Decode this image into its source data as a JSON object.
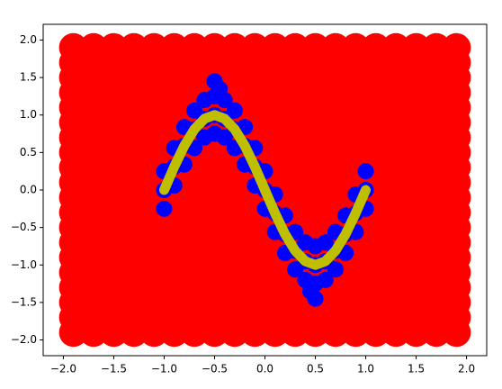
{
  "chart_data": {
    "type": "scatter",
    "xlim": [
      -2.2,
      2.2
    ],
    "ylim": [
      -2.21,
      2.21
    ],
    "xticks": [
      {
        "value": -2,
        "label": "−2.0"
      },
      {
        "value": -1.5,
        "label": "−1.5"
      },
      {
        "value": -1,
        "label": "−1.0"
      },
      {
        "value": -0.5,
        "label": "−0.5"
      },
      {
        "value": 0,
        "label": "0.0"
      },
      {
        "value": 0.5,
        "label": "0.5"
      },
      {
        "value": 1,
        "label": "1.0"
      },
      {
        "value": 1.5,
        "label": "1.5"
      },
      {
        "value": 2,
        "label": "2.0"
      }
    ],
    "yticks": [
      {
        "value": -2,
        "label": "−2.0"
      },
      {
        "value": -1.5,
        "label": "−1.5"
      },
      {
        "value": -1,
        "label": "−1.0"
      },
      {
        "value": -0.5,
        "label": "−0.5"
      },
      {
        "value": 0,
        "label": "0.0"
      },
      {
        "value": 0.5,
        "label": "0.5"
      },
      {
        "value": 1,
        "label": "1.0"
      },
      {
        "value": 1.5,
        "label": "1.5"
      },
      {
        "value": 2,
        "label": "2.0"
      }
    ],
    "series": [
      {
        "type": "scatter",
        "color": "#ff0000",
        "x": [
          -1.9,
          -1.7,
          -1.5,
          -1.3,
          -1.1,
          -0.9,
          -0.7,
          -0.5,
          -0.3,
          -0.1,
          0.1,
          0.3,
          0.5,
          0.7,
          0.9,
          1.1,
          1.3,
          1.5,
          1.7,
          1.9,
          -1.9,
          -1.7,
          -1.5,
          -1.3,
          -1.1,
          -0.9,
          -0.7,
          -0.5,
          -0.3,
          -0.1,
          0.1,
          0.3,
          0.5,
          0.7,
          0.9,
          1.1,
          1.3,
          1.5,
          1.7,
          1.9,
          -1.9,
          -1.7,
          -1.5,
          -1.3,
          -1.1,
          -0.9,
          -0.7,
          -0.5,
          -0.3,
          -0.1,
          0.1,
          0.3,
          0.5,
          0.7,
          0.9,
          1.1,
          1.3,
          1.5,
          1.7,
          1.9,
          -1.9,
          -1.7,
          -1.5,
          -1.3,
          -1.1,
          -0.9,
          -0.7,
          -0.5,
          -0.3,
          -0.1,
          0.1,
          0.3,
          0.5,
          0.7,
          0.9,
          1.1,
          1.3,
          1.5,
          1.7,
          1.9,
          -1.9,
          -1.7,
          -1.5,
          -1.3,
          -1.1,
          -0.9,
          -0.7,
          -0.5,
          -0.3,
          -0.1,
          0.1,
          0.3,
          0.5,
          0.7,
          0.9,
          1.1,
          1.3,
          1.5,
          1.7,
          1.9,
          -1.9,
          -1.7,
          -1.5,
          -1.3,
          -1.1,
          -0.9,
          -0.7,
          -0.5,
          -0.3,
          -0.1,
          0.1,
          0.3,
          0.5,
          0.7,
          0.9,
          1.1,
          1.3,
          1.5,
          1.7,
          1.9,
          -1.9,
          -1.7,
          -1.5,
          -1.3,
          -1.1,
          -0.9,
          -0.7,
          -0.5,
          -0.3,
          -0.1,
          0.1,
          0.3,
          0.5,
          0.7,
          0.9,
          1.1,
          1.3,
          1.5,
          1.7,
          1.9,
          -1.9,
          -1.7,
          -1.5,
          -1.3,
          -1.1,
          -0.9,
          -0.7,
          -0.5,
          -0.3,
          -0.1,
          0.1,
          0.3,
          0.5,
          0.7,
          0.9,
          1.1,
          1.3,
          1.5,
          1.7,
          1.9,
          -1.9,
          -1.7,
          -1.5,
          -1.3,
          -1.1,
          -0.9,
          -0.7,
          -0.5,
          -0.3,
          -0.1,
          0.1,
          0.3,
          0.5,
          0.7,
          0.9,
          1.1,
          1.3,
          1.5,
          1.7,
          1.9,
          -1.9,
          -1.7,
          -1.5,
          -1.3,
          -1.1,
          -0.9,
          -0.7,
          -0.5,
          -0.3,
          -0.1,
          0.1,
          0.3,
          0.5,
          0.7,
          0.9,
          1.1,
          1.3,
          1.5,
          1.7,
          1.9,
          -1.9,
          -1.7,
          -1.5,
          -1.3,
          -1.1,
          -0.9,
          -0.7,
          -0.5,
          -0.3,
          -0.1,
          0.1,
          0.3,
          0.5,
          0.7,
          0.9,
          1.1,
          1.3,
          1.5,
          1.7,
          1.9,
          -1.9,
          -1.7,
          -1.5,
          -1.3,
          -1.1,
          -0.9,
          -0.7,
          -0.5,
          -0.3,
          -0.1,
          0.1,
          0.3,
          0.5,
          0.7,
          0.9,
          1.1,
          1.3,
          1.5,
          1.7,
          1.9,
          -1.9,
          -1.7,
          -1.5,
          -1.3,
          -1.1,
          -0.9,
          -0.7,
          -0.5,
          -0.3,
          -0.1,
          0.1,
          0.3,
          0.5,
          0.7,
          0.9,
          1.1,
          1.3,
          1.5,
          1.7,
          1.9,
          -1.9,
          -1.7,
          -1.5,
          -1.3,
          -1.1,
          -0.9,
          -0.7,
          -0.5,
          -0.3,
          -0.1,
          0.1,
          0.3,
          0.5,
          0.7,
          0.9,
          1.1,
          1.3,
          1.5,
          1.7,
          1.9,
          -1.9,
          -1.7,
          -1.5,
          -1.3,
          -1.1,
          -0.9,
          -0.7,
          -0.5,
          -0.3,
          -0.1,
          0.1,
          0.3,
          0.5,
          0.7,
          0.9,
          1.1,
          1.3,
          1.5,
          1.7,
          1.9,
          -1.9,
          -1.7,
          -1.5,
          -1.3,
          -1.1,
          -0.9,
          -0.7,
          -0.5,
          -0.3,
          -0.1,
          0.1,
          0.3,
          0.5,
          0.7,
          0.9,
          1.1,
          1.3,
          1.5,
          1.7,
          1.9,
          -1.9,
          -1.7,
          -1.5,
          -1.3,
          -1.1,
          -0.9,
          -0.7,
          -0.5,
          -0.3,
          -0.1,
          0.1,
          0.3,
          0.5,
          0.7,
          0.9,
          1.1,
          1.3,
          1.5,
          1.7,
          1.9,
          -1.9,
          -1.7,
          -1.5,
          -1.3,
          -1.1,
          -0.9,
          -0.7,
          -0.5,
          -0.3,
          -0.1,
          0.1,
          0.3,
          0.5,
          0.7,
          0.9,
          1.1,
          1.3,
          1.5,
          1.7,
          1.9,
          -1.9,
          -1.7,
          -1.5,
          -1.3,
          -1.1,
          -0.9,
          -0.7,
          -0.5,
          -0.3,
          -0.1,
          0.1,
          0.3,
          0.5,
          0.7,
          0.9,
          1.1,
          1.3,
          1.5,
          1.7,
          1.9,
          -1.9,
          -1.7,
          -1.5,
          -1.3,
          -1.1,
          -0.9,
          -0.7,
          -0.5,
          -0.3,
          -0.1,
          0.1,
          0.3,
          0.5,
          0.7,
          0.9,
          1.1,
          1.3,
          1.5,
          1.7,
          1.9
        ],
        "y": [
          -1.9,
          -1.9,
          -1.9,
          -1.9,
          -1.9,
          -1.9,
          -1.9,
          -1.9,
          -1.9,
          -1.9,
          -1.9,
          -1.9,
          -1.9,
          -1.9,
          -1.9,
          -1.9,
          -1.9,
          -1.9,
          -1.9,
          -1.9,
          -1.7,
          -1.7,
          -1.7,
          -1.7,
          -1.7,
          -1.7,
          -1.7,
          -1.7,
          -1.7,
          -1.7,
          -1.7,
          -1.7,
          -1.7,
          -1.7,
          -1.7,
          -1.7,
          -1.7,
          -1.7,
          -1.7,
          -1.7,
          -1.5,
          -1.5,
          -1.5,
          -1.5,
          -1.5,
          -1.5,
          -1.5,
          -1.5,
          -1.5,
          -1.5,
          -1.5,
          -1.5,
          -1.5,
          -1.5,
          -1.5,
          -1.5,
          -1.5,
          -1.5,
          -1.5,
          -1.5,
          -1.3,
          -1.3,
          -1.3,
          -1.3,
          -1.3,
          -1.3,
          -1.3,
          -1.3,
          -1.3,
          -1.3,
          -1.3,
          -1.3,
          -1.3,
          -1.3,
          -1.3,
          -1.3,
          -1.3,
          -1.3,
          -1.3,
          -1.3,
          -1.1,
          -1.1,
          -1.1,
          -1.1,
          -1.1,
          -1.1,
          -1.1,
          -1.1,
          -1.1,
          -1.1,
          -1.1,
          -1.1,
          -1.1,
          -1.1,
          -1.1,
          -1.1,
          -1.1,
          -1.1,
          -1.1,
          -1.1,
          -0.9,
          -0.9,
          -0.9,
          -0.9,
          -0.9,
          -0.9,
          -0.9,
          -0.9,
          -0.9,
          -0.9,
          -0.9,
          -0.9,
          -0.9,
          -0.9,
          -0.9,
          -0.9,
          -0.9,
          -0.9,
          -0.9,
          -0.9,
          -0.7,
          -0.7,
          -0.7,
          -0.7,
          -0.7,
          -0.7,
          -0.7,
          -0.7,
          -0.7,
          -0.7,
          -0.7,
          -0.7,
          -0.7,
          -0.7,
          -0.7,
          -0.7,
          -0.7,
          -0.7,
          -0.7,
          -0.7,
          -0.5,
          -0.5,
          -0.5,
          -0.5,
          -0.5,
          -0.5,
          -0.5,
          -0.5,
          -0.5,
          -0.5,
          -0.5,
          -0.5,
          -0.5,
          -0.5,
          -0.5,
          -0.5,
          -0.5,
          -0.5,
          -0.5,
          -0.5,
          -0.3,
          -0.3,
          -0.3,
          -0.3,
          -0.3,
          -0.3,
          -0.3,
          -0.3,
          -0.3,
          -0.3,
          -0.3,
          -0.3,
          -0.3,
          -0.3,
          -0.3,
          -0.3,
          -0.3,
          -0.3,
          -0.3,
          -0.3,
          -0.1,
          -0.1,
          -0.1,
          -0.1,
          -0.1,
          -0.1,
          -0.1,
          -0.1,
          -0.1,
          -0.1,
          -0.1,
          -0.1,
          -0.1,
          -0.1,
          -0.1,
          -0.1,
          -0.1,
          -0.1,
          -0.1,
          -0.1,
          0.1,
          0.1,
          0.1,
          0.1,
          0.1,
          0.1,
          0.1,
          0.1,
          0.1,
          0.1,
          0.1,
          0.1,
          0.1,
          0.1,
          0.1,
          0.1,
          0.1,
          0.1,
          0.1,
          0.1,
          0.3,
          0.3,
          0.3,
          0.3,
          0.3,
          0.3,
          0.3,
          0.3,
          0.3,
          0.3,
          0.3,
          0.3,
          0.3,
          0.3,
          0.3,
          0.3,
          0.3,
          0.3,
          0.3,
          0.3,
          0.5,
          0.5,
          0.5,
          0.5,
          0.5,
          0.5,
          0.5,
          0.5,
          0.5,
          0.5,
          0.5,
          0.5,
          0.5,
          0.5,
          0.5,
          0.5,
          0.5,
          0.5,
          0.5,
          0.5,
          0.7,
          0.7,
          0.7,
          0.7,
          0.7,
          0.7,
          0.7,
          0.7,
          0.7,
          0.7,
          0.7,
          0.7,
          0.7,
          0.7,
          0.7,
          0.7,
          0.7,
          0.7,
          0.7,
          0.7,
          0.9,
          0.9,
          0.9,
          0.9,
          0.9,
          0.9,
          0.9,
          0.9,
          0.9,
          0.9,
          0.9,
          0.9,
          0.9,
          0.9,
          0.9,
          0.9,
          0.9,
          0.9,
          0.9,
          0.9,
          1.1,
          1.1,
          1.1,
          1.1,
          1.1,
          1.1,
          1.1,
          1.1,
          1.1,
          1.1,
          1.1,
          1.1,
          1.1,
          1.1,
          1.1,
          1.1,
          1.1,
          1.1,
          1.1,
          1.1,
          1.3,
          1.3,
          1.3,
          1.3,
          1.3,
          1.3,
          1.3,
          1.3,
          1.3,
          1.3,
          1.3,
          1.3,
          1.3,
          1.3,
          1.3,
          1.3,
          1.3,
          1.3,
          1.3,
          1.3,
          1.5,
          1.5,
          1.5,
          1.5,
          1.5,
          1.5,
          1.5,
          1.5,
          1.5,
          1.5,
          1.5,
          1.5,
          1.5,
          1.5,
          1.5,
          1.5,
          1.5,
          1.5,
          1.5,
          1.5,
          1.7,
          1.7,
          1.7,
          1.7,
          1.7,
          1.7,
          1.7,
          1.7,
          1.7,
          1.7,
          1.7,
          1.7,
          1.7,
          1.7,
          1.7,
          1.7,
          1.7,
          1.7,
          1.7,
          1.7,
          1.9,
          1.9,
          1.9,
          1.9,
          1.9,
          1.9,
          1.9,
          1.9,
          1.9,
          1.9,
          1.9,
          1.9,
          1.9,
          1.9,
          1.9,
          1.9,
          1.9,
          1.9,
          1.9,
          1.9
        ]
      },
      {
        "type": "scatter",
        "color": "#0000ff",
        "x": [
          -1,
          -1,
          -1,
          -0.9,
          -0.9,
          -0.9,
          -0.8,
          -0.8,
          -0.8,
          -0.7,
          -0.7,
          -0.7,
          -0.6,
          -0.6,
          -0.6,
          -0.5,
          -0.5,
          -0.5,
          -0.4,
          -0.4,
          -0.4,
          -0.3,
          -0.3,
          -0.3,
          -0.2,
          -0.2,
          -0.2,
          -0.1,
          -0.1,
          -0.1,
          0,
          0,
          0,
          0.1,
          0.1,
          0.1,
          0.2,
          0.2,
          0.2,
          0.3,
          0.3,
          0.3,
          0.4,
          0.4,
          0.4,
          0.5,
          0.5,
          0.5,
          0.6,
          0.6,
          0.6,
          0.7,
          0.7,
          0.7,
          0.8,
          0.8,
          0.8,
          0.9,
          0.9,
          0.9,
          1,
          1,
          1,
          -0.5,
          -0.45,
          0.5,
          0.45
        ],
        "y": [
          -0.25,
          0,
          0.25,
          0.06,
          0.31,
          0.56,
          0.34,
          0.59,
          0.84,
          0.56,
          0.81,
          1.06,
          0.7,
          0.95,
          1.2,
          0.75,
          1,
          1.25,
          0.7,
          0.95,
          1.2,
          0.56,
          0.81,
          1.06,
          0.34,
          0.59,
          0.84,
          0.06,
          0.31,
          0.56,
          -0.25,
          0,
          0.25,
          -0.56,
          -0.31,
          -0.06,
          -0.84,
          -0.59,
          -0.34,
          -1.06,
          -0.81,
          -0.56,
          -1.2,
          -0.95,
          -0.7,
          -1.25,
          -1,
          -0.75,
          -1.2,
          -0.95,
          -0.7,
          -1.06,
          -0.81,
          -0.56,
          -0.84,
          -0.59,
          -0.34,
          -0.56,
          -0.31,
          -0.06,
          -0.25,
          0,
          0.25,
          1.45,
          1.35,
          -1.45,
          -1.35
        ]
      },
      {
        "type": "line",
        "color": "#bfbf00",
        "x": [
          -1,
          -0.9,
          -0.8,
          -0.7,
          -0.6,
          -0.5,
          -0.4,
          -0.3,
          -0.2,
          -0.1,
          0,
          0.1,
          0.2,
          0.3,
          0.4,
          0.5,
          0.6,
          0.7,
          0.8,
          0.9,
          1
        ],
        "y": [
          0,
          0.31,
          0.59,
          0.81,
          0.95,
          1,
          0.95,
          0.81,
          0.59,
          0.31,
          0,
          -0.31,
          -0.59,
          -0.81,
          -0.95,
          -1,
          -0.95,
          -0.81,
          -0.59,
          -0.31,
          0
        ]
      }
    ]
  }
}
